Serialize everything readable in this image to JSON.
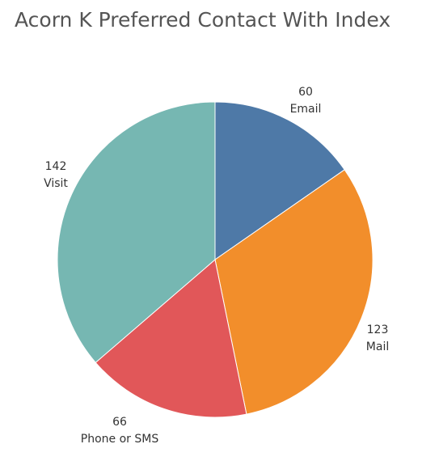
{
  "chart_data": {
    "type": "pie",
    "title": "Acorn K Preferred Contact With Index",
    "slices": [
      {
        "label": "Email",
        "value": 60,
        "color": "#4e79a7"
      },
      {
        "label": "Mail",
        "value": 123,
        "color": "#f28e2b"
      },
      {
        "label": "Phone or SMS",
        "value": 66,
        "color": "#e15759"
      },
      {
        "label": "Visit",
        "value": 142,
        "color": "#76b7b2"
      }
    ],
    "legend": "none"
  }
}
